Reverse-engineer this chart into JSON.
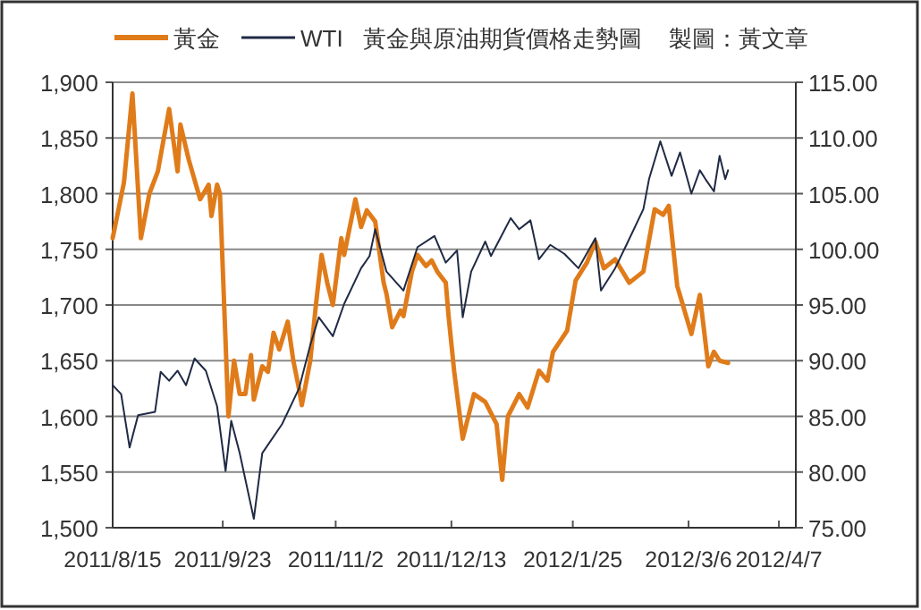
{
  "chart_data": {
    "type": "line",
    "title": "黃金與原油期貨價格走勢圖",
    "subtitle": "製圖：黃文章",
    "xlim": [
      "2011-08-15",
      "2012-04-13"
    ],
    "xticks": [
      {
        "value": "2011-08-15",
        "label": "2011/8/15"
      },
      {
        "value": "2011-09-23",
        "label": "2011/9/23"
      },
      {
        "value": "2011-11-02",
        "label": "2011/11/2"
      },
      {
        "value": "2011-12-13",
        "label": "2011/12/13"
      },
      {
        "value": "2012-01-25",
        "label": "2012/1/25"
      },
      {
        "value": "2012-03-06",
        "label": "2012/3/6"
      },
      {
        "value": "2012-04-07",
        "label": "2012/4/7"
      }
    ],
    "ylim": [
      1500,
      1900
    ],
    "yticks": [
      {
        "value": 1500,
        "label": "1,500"
      },
      {
        "value": 1550,
        "label": "1,550"
      },
      {
        "value": 1600,
        "label": "1,600"
      },
      {
        "value": 1650,
        "label": "1,650"
      },
      {
        "value": 1700,
        "label": "1,700"
      },
      {
        "value": 1750,
        "label": "1,750"
      },
      {
        "value": 1800,
        "label": "1,800"
      },
      {
        "value": 1850,
        "label": "1,850"
      },
      {
        "value": 1900,
        "label": "1,900"
      }
    ],
    "y2lim": [
      75,
      115
    ],
    "y2ticks": [
      {
        "value": 75,
        "label": "75.00"
      },
      {
        "value": 80,
        "label": "80.00"
      },
      {
        "value": 85,
        "label": "85.00"
      },
      {
        "value": 90,
        "label": "90.00"
      },
      {
        "value": 95,
        "label": "95.00"
      },
      {
        "value": 100,
        "label": "100.00"
      },
      {
        "value": 105,
        "label": "105.00"
      },
      {
        "value": 110,
        "label": "110.00"
      },
      {
        "value": 115,
        "label": "115.00"
      }
    ],
    "grid": "y",
    "legend": "top",
    "marker": "none",
    "line_style": "solid",
    "series": [
      {
        "name": "黃金",
        "color": "#e07b1a",
        "x": [
          "2011-08-15",
          "2011-08-19",
          "2011-08-22",
          "2011-08-25",
          "2011-08-28",
          "2011-08-31",
          "2011-09-04",
          "2011-09-07",
          "2011-09-08",
          "2011-09-11",
          "2011-09-15",
          "2011-09-18",
          "2011-09-19",
          "2011-09-21",
          "2011-09-22",
          "2011-09-25",
          "2011-09-27",
          "2011-09-29",
          "2011-10-01",
          "2011-10-03",
          "2011-10-04",
          "2011-10-07",
          "2011-10-09",
          "2011-10-11",
          "2011-10-13",
          "2011-10-16",
          "2011-10-18",
          "2011-10-20",
          "2011-10-21",
          "2011-10-24",
          "2011-10-26",
          "2011-10-28",
          "2011-10-30",
          "2011-11-01",
          "2011-11-04",
          "2011-11-05",
          "2011-11-09",
          "2011-11-11",
          "2011-11-13",
          "2011-11-16",
          "2011-11-19",
          "2011-11-20",
          "2011-11-22",
          "2011-11-25",
          "2011-11-26",
          "2011-11-29",
          "2011-12-01",
          "2011-12-04",
          "2011-12-06",
          "2011-12-08",
          "2011-12-11",
          "2011-12-12",
          "2011-12-14",
          "2011-12-17",
          "2011-12-19",
          "2011-12-21",
          "2011-12-25",
          "2011-12-29",
          "2011-12-31",
          "2012-01-02",
          "2012-01-06",
          "2012-01-09",
          "2012-01-13",
          "2012-01-16",
          "2012-01-18",
          "2012-01-23",
          "2012-01-26",
          "2012-01-30",
          "2012-02-02",
          "2012-02-05",
          "2012-02-09",
          "2012-02-14",
          "2012-02-19",
          "2012-02-23",
          "2012-02-26",
          "2012-02-28",
          "2012-03-02",
          "2012-03-07",
          "2012-03-10",
          "2012-03-13",
          "2012-03-15",
          "2012-03-17",
          "2012-03-20"
        ],
        "values": [
          1760,
          1810,
          1890,
          1760,
          1800,
          1820,
          1876,
          1820,
          1862,
          1830,
          1795,
          1808,
          1780,
          1808,
          1800,
          1600,
          1650,
          1620,
          1620,
          1655,
          1615,
          1645,
          1640,
          1675,
          1660,
          1685,
          1650,
          1625,
          1610,
          1650,
          1700,
          1745,
          1720,
          1700,
          1760,
          1745,
          1795,
          1770,
          1785,
          1775,
          1720,
          1710,
          1680,
          1695,
          1690,
          1730,
          1745,
          1735,
          1740,
          1730,
          1720,
          1690,
          1640,
          1580,
          1600,
          1620,
          1613,
          1593,
          1543,
          1600,
          1620,
          1608,
          1641,
          1632,
          1658,
          1677,
          1722,
          1738,
          1757,
          1733,
          1741,
          1720,
          1730,
          1786,
          1781,
          1789,
          1717,
          1674,
          1709,
          1645,
          1658,
          1650,
          1648
        ]
      },
      {
        "name": "WTI",
        "color": "#1f2a44",
        "axis": "y2",
        "x": [
          "2011-08-15",
          "2011-08-18",
          "2011-08-21",
          "2011-08-24",
          "2011-08-30",
          "2011-09-01",
          "2011-09-04",
          "2011-09-07",
          "2011-09-10",
          "2011-09-13",
          "2011-09-17",
          "2011-09-21",
          "2011-09-24",
          "2011-09-26",
          "2011-09-29",
          "2011-10-04",
          "2011-10-07",
          "2011-10-14",
          "2011-10-20",
          "2011-10-24",
          "2011-10-27",
          "2011-11-01",
          "2011-11-05",
          "2011-11-11",
          "2011-11-14",
          "2011-11-16",
          "2011-11-20",
          "2011-11-26",
          "2011-12-01",
          "2011-12-07",
          "2011-12-11",
          "2011-12-15",
          "2011-12-17",
          "2011-12-20",
          "2011-12-25",
          "2011-12-27",
          "2012-01-03",
          "2012-01-06",
          "2012-01-10",
          "2012-01-13",
          "2012-01-17",
          "2012-01-22",
          "2012-01-27",
          "2012-02-02",
          "2012-02-04",
          "2012-02-09",
          "2012-02-13",
          "2012-02-19",
          "2012-02-21",
          "2012-02-25",
          "2012-02-29",
          "2012-03-03",
          "2012-03-07",
          "2012-03-10",
          "2012-03-12",
          "2012-03-15",
          "2012-03-17",
          "2012-03-19",
          "2012-03-20"
        ],
        "values": [
          87.8,
          87.0,
          82.2,
          85.1,
          85.4,
          89.0,
          88.2,
          89.1,
          87.8,
          90.2,
          89.1,
          85.9,
          80.1,
          84.6,
          81.7,
          75.8,
          81.7,
          84.3,
          87.5,
          91.4,
          93.9,
          92.2,
          95.1,
          98.3,
          99.4,
          101.8,
          98.0,
          96.3,
          100.2,
          101.2,
          98.8,
          99.9,
          93.9,
          98.0,
          100.7,
          99.4,
          102.8,
          101.8,
          102.6,
          99.1,
          100.4,
          99.6,
          98.3,
          101.0,
          96.3,
          98.3,
          100.4,
          103.6,
          106.3,
          109.7,
          106.6,
          108.7,
          105.0,
          107.1,
          106.3,
          105.2,
          108.4,
          106.3,
          107.1
        ]
      }
    ]
  }
}
